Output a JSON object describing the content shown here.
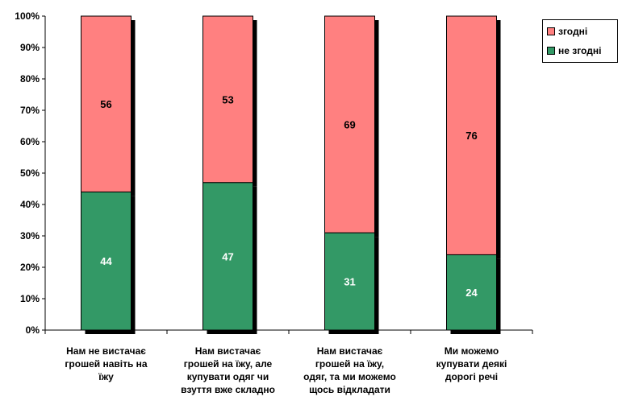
{
  "chart_data": {
    "type": "bar",
    "stacked": true,
    "percent": true,
    "categories": [
      "Нам не вистачає грошей навіть на їжу",
      "Нам вистачає грошей на їжу, але купувати одяг чи взуття вже складно",
      "Нам вистачає грошей на їжу, одяг, та ми можемо щось відкладати",
      "Ми можемо купувати деякі дорогі речі"
    ],
    "category_lines": [
      [
        "Нам не вистачає",
        "грошей навіть на",
        "їжу"
      ],
      [
        "Нам вистачає",
        "грошей на їжу, але",
        "купувати одяг чи",
        "взуття вже складно"
      ],
      [
        "Нам вистачає",
        "грошей на їжу,",
        "одяг, та ми можемо",
        "щось відкладати"
      ],
      [
        "Ми можемо",
        "купувати деякі",
        "дорогі речі"
      ]
    ],
    "series": [
      {
        "name": "не згодні",
        "values": [
          44,
          47,
          31,
          24
        ],
        "color": "#339966",
        "label_color": "#ffffff"
      },
      {
        "name": "згодні",
        "values": [
          56,
          53,
          69,
          76
        ],
        "color": "#ff8080",
        "label_color": "#000000"
      }
    ],
    "legend_order": [
      "згодні",
      "не згодні"
    ],
    "y_ticks": [
      "0%",
      "10%",
      "20%",
      "30%",
      "40%",
      "50%",
      "60%",
      "70%",
      "80%",
      "90%",
      "100%"
    ],
    "ylim": [
      0,
      100
    ],
    "grid": false,
    "legend": "top-right"
  }
}
